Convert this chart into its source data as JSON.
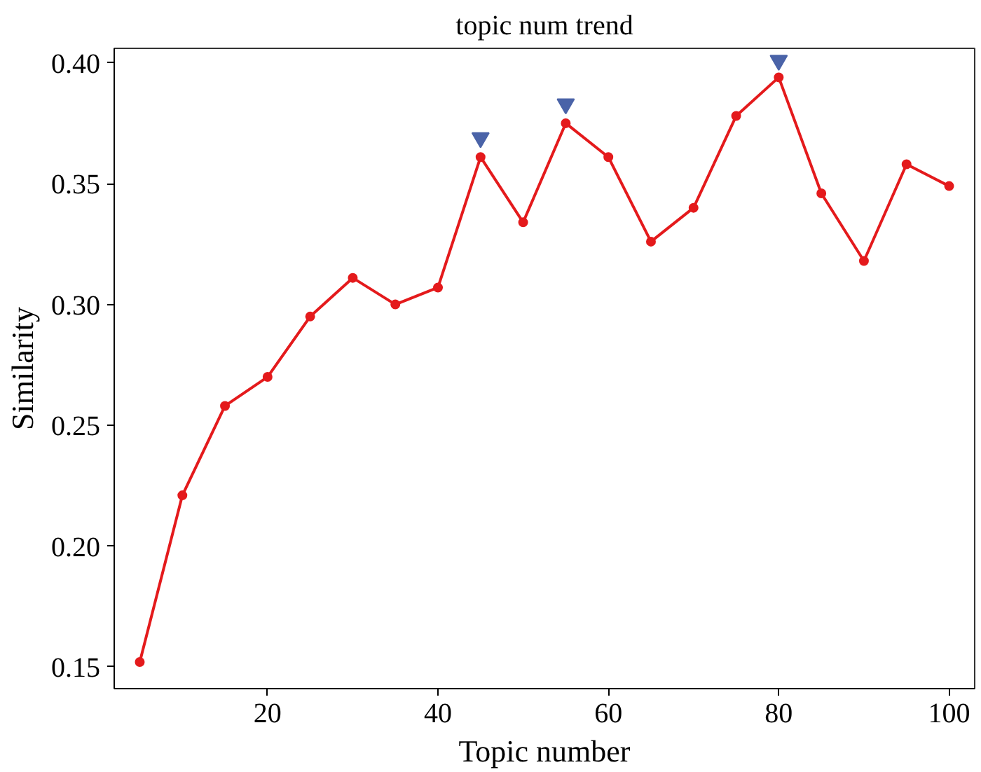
{
  "chart_data": {
    "type": "line",
    "title": "topic num trend",
    "xlabel": "Topic number",
    "ylabel": "Similarity",
    "xlim": [
      2,
      103
    ],
    "ylim": [
      0.141,
      0.406
    ],
    "xticks": [
      20,
      40,
      60,
      80,
      100
    ],
    "yticks": [
      {
        "value": 0.15,
        "label": "0.15"
      },
      {
        "value": 0.2,
        "label": "0.20"
      },
      {
        "value": 0.25,
        "label": "0.25"
      },
      {
        "value": 0.3,
        "label": "0.30"
      },
      {
        "value": 0.35,
        "label": "0.35"
      },
      {
        "value": 0.4,
        "label": "0.40"
      }
    ],
    "grid": false,
    "series": [
      {
        "color": "#e41a1c",
        "marker": "circle",
        "line_style": "solid",
        "x": [
          5,
          10,
          15,
          20,
          25,
          30,
          35,
          40,
          45,
          50,
          55,
          60,
          65,
          70,
          75,
          80,
          85,
          90,
          95,
          100
        ],
        "values": [
          0.152,
          0.221,
          0.258,
          0.27,
          0.295,
          0.311,
          0.3,
          0.307,
          0.361,
          0.334,
          0.375,
          0.361,
          0.326,
          0.34,
          0.378,
          0.394,
          0.346,
          0.318,
          0.358,
          0.349
        ]
      },
      {
        "type": "scatter",
        "color": "#4a63a8",
        "marker": "triangle",
        "x": [
          45,
          55,
          80
        ],
        "values": [
          0.369,
          0.383,
          0.401
        ]
      }
    ]
  }
}
